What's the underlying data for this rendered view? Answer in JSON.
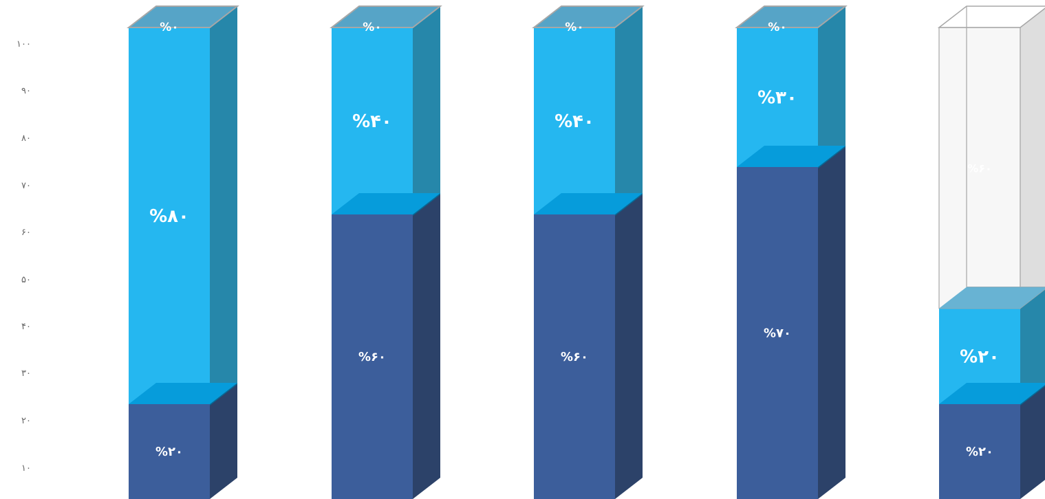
{
  "chart_data": {
    "type": "bar",
    "stacked": true,
    "style": "3d-column",
    "y_ticks": [
      "۱۰",
      "۲۰",
      "۳۰",
      "۴۰",
      "۵۰",
      "۶۰",
      "۷۰",
      "۸۰",
      "۹۰",
      "۱۰۰"
    ],
    "ylim": [
      0,
      100
    ],
    "grid": false,
    "legend": "none",
    "colors": {
      "base": "#3c5e9b",
      "base_side": "#2c4269",
      "top": "#25b7f0",
      "top_side": "#2687aa",
      "seam": "#069cdb",
      "seam_side": "#056a98",
      "cap": "#56a4c7",
      "cap_stroke": "#a7a7a7",
      "empty_front": "#f7f7f7",
      "empty_side": "#dedede",
      "empty_label": "#dddddd"
    },
    "bars": [
      {
        "total_fill": 100,
        "segments": [
          {
            "value": 20,
            "label": "%۲۰",
            "role": "base"
          },
          {
            "value": 80,
            "label": "%۸۰",
            "role": "top"
          },
          {
            "value": 0,
            "label": "%۰",
            "role": "cap"
          }
        ]
      },
      {
        "total_fill": 100,
        "segments": [
          {
            "value": 60,
            "label": "%۶۰",
            "role": "base"
          },
          {
            "value": 40,
            "label": "%۴۰",
            "role": "top"
          },
          {
            "value": 0,
            "label": "%۰",
            "role": "cap"
          }
        ]
      },
      {
        "total_fill": 100,
        "segments": [
          {
            "value": 60,
            "label": "%۶۰",
            "role": "base"
          },
          {
            "value": 40,
            "label": "%۴۰",
            "role": "top"
          },
          {
            "value": 0,
            "label": "%۰",
            "role": "cap"
          }
        ]
      },
      {
        "total_fill": 100,
        "segments": [
          {
            "value": 70,
            "label": "%۷۰",
            "role": "base"
          },
          {
            "value": 30,
            "label": "%۳۰",
            "role": "top"
          },
          {
            "value": 0,
            "label": "%۰",
            "role": "cap"
          }
        ]
      },
      {
        "total_fill": 40,
        "segments": [
          {
            "value": 20,
            "label": "%۲۰",
            "role": "base"
          },
          {
            "value": 20,
            "label": "%۲۰",
            "role": "top"
          },
          {
            "value": 60,
            "label": "%۶۰",
            "role": "empty"
          }
        ]
      }
    ]
  }
}
